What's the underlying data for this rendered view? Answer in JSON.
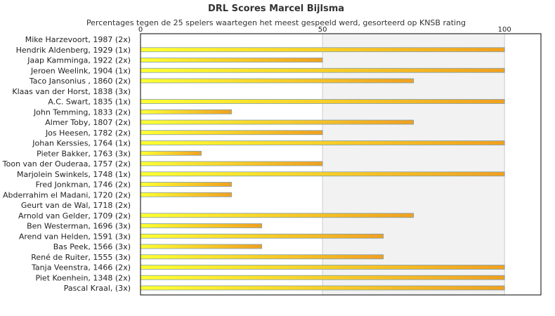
{
  "chart_data": {
    "type": "bar",
    "orientation": "horizontal",
    "title": "DRL Scores Marcel Bijlsma",
    "subtitle": "Percentages tegen de 25 spelers waartegen het meest gespeeld werd, gesorteerd op KNSB rating",
    "xlabel": "",
    "ylabel": "",
    "xlim": [
      0,
      110
    ],
    "x_ticks": [
      "0",
      "50",
      "100"
    ],
    "x_tick_values": [
      0,
      50,
      100
    ],
    "grid": true,
    "legend": "none",
    "categories": [
      "Mike Harzevoort, 1987 (2x)",
      "Hendrik Aldenberg, 1929 (1x)",
      "Jaap Kamminga, 1922 (2x)",
      "Jeroen Weelink, 1904 (1x)",
      "Taco Jansonius , 1860 (2x)",
      "Klaas van der Horst, 1838 (3x)",
      "A.C. Swart, 1835 (1x)",
      "John Temming, 1833 (2x)",
      "Almer Toby, 1807 (2x)",
      "Jos Heesen, 1782 (2x)",
      "Johan Kerssies, 1764 (1x)",
      "Pieter Bakker, 1763 (3x)",
      "Toon van der Ouderaa, 1757 (2x)",
      "Marjolein Swinkels, 1748 (1x)",
      "Fred Jonkman, 1746 (2x)",
      "Abderrahim el Madani, 1720 (2x)",
      "Geurt van de Wal, 1718 (2x)",
      "Arnold van Gelder, 1709 (2x)",
      "Ben Westerman, 1696 (3x)",
      "Arend van Helden, 1591 (3x)",
      "Bas Peek, 1566 (3x)",
      "René de Ruiter, 1555 (3x)",
      "Tanja Veenstra, 1466 (2x)",
      "Piet Koenhein, 1348 (2x)",
      "Pascal Kraal,  (3x)"
    ],
    "values": [
      0,
      100,
      50,
      100,
      75,
      0,
      100,
      25,
      75,
      50,
      100,
      16.7,
      50,
      100,
      25,
      25,
      0,
      75,
      33.3,
      66.7,
      33.3,
      66.7,
      100,
      100,
      100
    ],
    "colors": {
      "bar_start": "#ffff33",
      "bar_end": "#f0a020",
      "bar_outline": "#7f9fb0",
      "band": "#f2f2f2",
      "gridline": "#cccccc",
      "axis": "#000000"
    }
  }
}
